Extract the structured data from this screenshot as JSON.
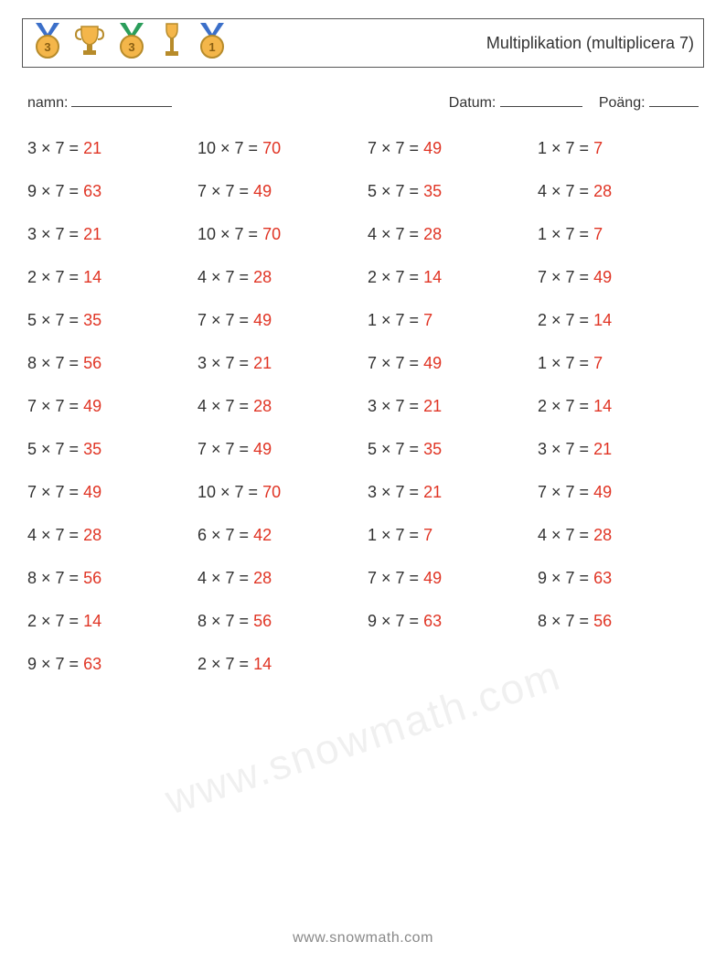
{
  "header": {
    "title": "Multiplikation (multiplicera 7)",
    "icons": [
      "medal-bronze",
      "trophy-gold",
      "medal-gold",
      "trophy-tall",
      "medal-first"
    ]
  },
  "meta": {
    "name_label": "namn:",
    "date_label": "Datum:",
    "score_label": "Poäng:",
    "blank_widths": {
      "name": 110,
      "date": 90,
      "score": 54
    }
  },
  "styling": {
    "text_color": "#333333",
    "answer_color": "#e03424",
    "border_color": "#555555",
    "background_color": "#ffffff",
    "font_family": "Arial, Helvetica, sans-serif",
    "problem_fontsize": 18,
    "title_fontsize": 18,
    "meta_fontsize": 16,
    "columns": 4,
    "row_gap": 26,
    "times_symbol": "×",
    "equals_symbol": "="
  },
  "problems": [
    {
      "a": 3,
      "b": 7,
      "ans": 21
    },
    {
      "a": 10,
      "b": 7,
      "ans": 70
    },
    {
      "a": 7,
      "b": 7,
      "ans": 49
    },
    {
      "a": 1,
      "b": 7,
      "ans": 7
    },
    {
      "a": 9,
      "b": 7,
      "ans": 63
    },
    {
      "a": 7,
      "b": 7,
      "ans": 49
    },
    {
      "a": 5,
      "b": 7,
      "ans": 35
    },
    {
      "a": 4,
      "b": 7,
      "ans": 28
    },
    {
      "a": 3,
      "b": 7,
      "ans": 21
    },
    {
      "a": 10,
      "b": 7,
      "ans": 70
    },
    {
      "a": 4,
      "b": 7,
      "ans": 28
    },
    {
      "a": 1,
      "b": 7,
      "ans": 7
    },
    {
      "a": 2,
      "b": 7,
      "ans": 14
    },
    {
      "a": 4,
      "b": 7,
      "ans": 28
    },
    {
      "a": 2,
      "b": 7,
      "ans": 14
    },
    {
      "a": 7,
      "b": 7,
      "ans": 49
    },
    {
      "a": 5,
      "b": 7,
      "ans": 35
    },
    {
      "a": 7,
      "b": 7,
      "ans": 49
    },
    {
      "a": 1,
      "b": 7,
      "ans": 7
    },
    {
      "a": 2,
      "b": 7,
      "ans": 14
    },
    {
      "a": 8,
      "b": 7,
      "ans": 56
    },
    {
      "a": 3,
      "b": 7,
      "ans": 21
    },
    {
      "a": 7,
      "b": 7,
      "ans": 49
    },
    {
      "a": 1,
      "b": 7,
      "ans": 7
    },
    {
      "a": 7,
      "b": 7,
      "ans": 49
    },
    {
      "a": 4,
      "b": 7,
      "ans": 28
    },
    {
      "a": 3,
      "b": 7,
      "ans": 21
    },
    {
      "a": 2,
      "b": 7,
      "ans": 14
    },
    {
      "a": 5,
      "b": 7,
      "ans": 35
    },
    {
      "a": 7,
      "b": 7,
      "ans": 49
    },
    {
      "a": 5,
      "b": 7,
      "ans": 35
    },
    {
      "a": 3,
      "b": 7,
      "ans": 21
    },
    {
      "a": 7,
      "b": 7,
      "ans": 49
    },
    {
      "a": 10,
      "b": 7,
      "ans": 70
    },
    {
      "a": 3,
      "b": 7,
      "ans": 21
    },
    {
      "a": 7,
      "b": 7,
      "ans": 49
    },
    {
      "a": 4,
      "b": 7,
      "ans": 28
    },
    {
      "a": 6,
      "b": 7,
      "ans": 42
    },
    {
      "a": 1,
      "b": 7,
      "ans": 7
    },
    {
      "a": 4,
      "b": 7,
      "ans": 28
    },
    {
      "a": 8,
      "b": 7,
      "ans": 56
    },
    {
      "a": 4,
      "b": 7,
      "ans": 28
    },
    {
      "a": 7,
      "b": 7,
      "ans": 49
    },
    {
      "a": 9,
      "b": 7,
      "ans": 63
    },
    {
      "a": 2,
      "b": 7,
      "ans": 14
    },
    {
      "a": 8,
      "b": 7,
      "ans": 56
    },
    {
      "a": 9,
      "b": 7,
      "ans": 63
    },
    {
      "a": 8,
      "b": 7,
      "ans": 56
    },
    {
      "a": 9,
      "b": 7,
      "ans": 63
    },
    {
      "a": 2,
      "b": 7,
      "ans": 14
    }
  ],
  "footer": {
    "watermark": "www.snowmath.com",
    "url": "www.snowmath.com"
  },
  "icon_svg": {
    "medal-bronze": {
      "type": "medal",
      "disc": "#f4b64a",
      "ribbon": "#3b6fc9",
      "num": "3"
    },
    "trophy-gold": {
      "type": "trophy",
      "cup": "#f4b64a",
      "base": "#b78b2a"
    },
    "medal-gold": {
      "type": "medal",
      "disc": "#f4b64a",
      "ribbon": "#2a9d5a",
      "num": "3"
    },
    "trophy-tall": {
      "type": "trophy-tall",
      "cup": "#f4b64a",
      "stem": "#b78b2a"
    },
    "medal-first": {
      "type": "medal",
      "disc": "#f4b64a",
      "ribbon": "#3b6fc9",
      "num": "1"
    }
  }
}
